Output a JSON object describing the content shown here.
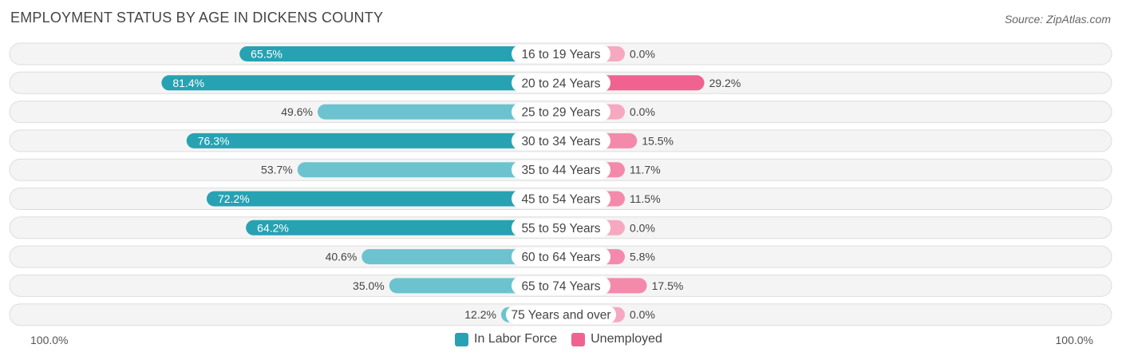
{
  "title": "EMPLOYMENT STATUS BY AGE IN DICKENS COUNTY",
  "source": "Source: ZipAtlas.com",
  "colors": {
    "labor": "#3aaab9",
    "labor_dark": "#26a2b3",
    "unemployed": "#f7a8c1",
    "unemployed_dark": "#f06390",
    "row_bg": "#eeeeee",
    "row_border": "#dddddd"
  },
  "chart_data": {
    "type": "bar",
    "orientation": "horizontal-diverging",
    "categories": [
      "16 to 19 Years",
      "20 to 24 Years",
      "25 to 29 Years",
      "30 to 34 Years",
      "35 to 44 Years",
      "45 to 54 Years",
      "55 to 59 Years",
      "60 to 64 Years",
      "65 to 74 Years",
      "75 Years and over"
    ],
    "series": [
      {
        "name": "In Labor Force",
        "values": [
          65.5,
          81.4,
          49.6,
          76.3,
          53.7,
          72.2,
          64.2,
          40.6,
          35.0,
          12.2
        ],
        "labels": [
          "65.5%",
          "81.4%",
          "49.6%",
          "76.3%",
          "53.7%",
          "72.2%",
          "64.2%",
          "40.6%",
          "35.0%",
          "12.2%"
        ]
      },
      {
        "name": "Unemployed",
        "values": [
          0.0,
          29.2,
          0.0,
          15.5,
          11.7,
          11.5,
          0.0,
          5.8,
          17.5,
          0.0
        ],
        "labels": [
          "0.0%",
          "29.2%",
          "0.0%",
          "15.5%",
          "11.7%",
          "11.5%",
          "0.0%",
          "5.8%",
          "17.5%",
          "0.0%"
        ]
      }
    ],
    "xlim": [
      -100,
      100
    ],
    "axis_left_label": "100.0%",
    "axis_right_label": "100.0%",
    "legend": [
      "In Labor Force",
      "Unemployed"
    ],
    "legend_position": "bottom-center"
  }
}
